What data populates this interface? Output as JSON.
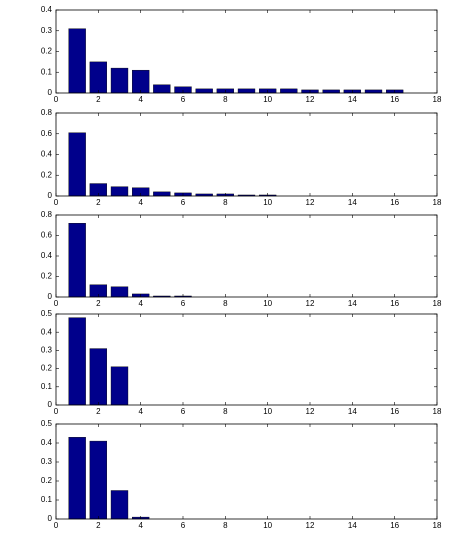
{
  "chart_data": [
    {
      "type": "bar",
      "color": "#00008b",
      "x": [
        1,
        2,
        3,
        4,
        5,
        6,
        7,
        8,
        9,
        10,
        11,
        12,
        13,
        14,
        15,
        16
      ],
      "values": [
        0.31,
        0.15,
        0.12,
        0.11,
        0.04,
        0.03,
        0.02,
        0.02,
        0.02,
        0.02,
        0.02,
        0.015,
        0.015,
        0.015,
        0.015,
        0.015
      ],
      "xlim": [
        0,
        18
      ],
      "xticks": [
        0,
        2,
        4,
        6,
        8,
        10,
        12,
        14,
        16,
        18
      ],
      "ylim": [
        0,
        0.4
      ],
      "yticks": [
        0,
        0.1,
        0.2,
        0.3,
        0.4
      ]
    },
    {
      "type": "bar",
      "color": "#00008b",
      "x": [
        1,
        2,
        3,
        4,
        5,
        6,
        7,
        8,
        9,
        10
      ],
      "values": [
        0.61,
        0.12,
        0.09,
        0.08,
        0.04,
        0.03,
        0.02,
        0.02,
        0.01,
        0.01
      ],
      "xlim": [
        0,
        18
      ],
      "xticks": [
        0,
        2,
        4,
        6,
        8,
        10,
        12,
        14,
        16,
        18
      ],
      "ylim": [
        0,
        0.8
      ],
      "yticks": [
        0,
        0.2,
        0.4,
        0.6,
        0.8
      ]
    },
    {
      "type": "bar",
      "color": "#00008b",
      "x": [
        1,
        2,
        3,
        4,
        5,
        6
      ],
      "values": [
        0.72,
        0.12,
        0.1,
        0.03,
        0.01,
        0.01
      ],
      "xlim": [
        0,
        18
      ],
      "xticks": [
        0,
        2,
        4,
        6,
        8,
        10,
        12,
        14,
        16,
        18
      ],
      "ylim": [
        0,
        0.8
      ],
      "yticks": [
        0,
        0.2,
        0.4,
        0.6,
        0.8
      ]
    },
    {
      "type": "bar",
      "color": "#00008b",
      "x": [
        1,
        2,
        3
      ],
      "values": [
        0.48,
        0.31,
        0.21
      ],
      "xlim": [
        0,
        18
      ],
      "xticks": [
        0,
        2,
        4,
        6,
        8,
        10,
        12,
        14,
        16,
        18
      ],
      "ylim": [
        0,
        0.5
      ],
      "yticks": [
        0,
        0.1,
        0.2,
        0.3,
        0.4,
        0.5
      ]
    },
    {
      "type": "bar",
      "color": "#00008b",
      "x": [
        1,
        2,
        3,
        4
      ],
      "values": [
        0.43,
        0.41,
        0.15,
        0.01
      ],
      "xlim": [
        0,
        18
      ],
      "xticks": [
        0,
        2,
        4,
        6,
        8,
        10,
        12,
        14,
        16,
        18
      ],
      "ylim": [
        0,
        0.5
      ],
      "yticks": [
        0,
        0.1,
        0.2,
        0.3,
        0.4,
        0.5
      ]
    }
  ]
}
